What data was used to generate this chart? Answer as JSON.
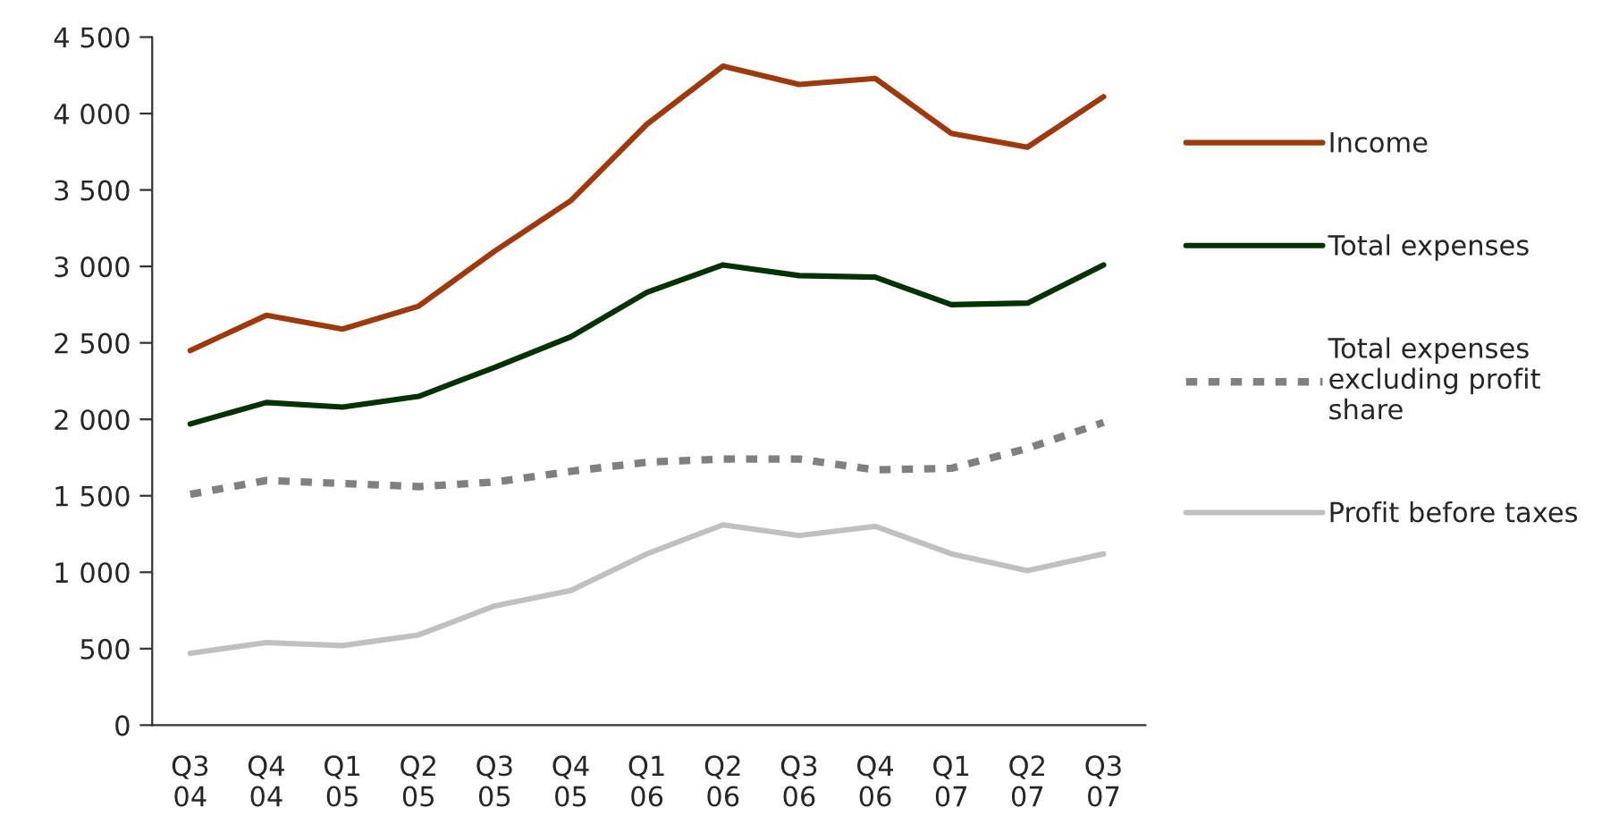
{
  "chart_data": {
    "type": "line",
    "categories": [
      "Q3\n04",
      "Q4\n04",
      "Q1\n05",
      "Q2\n05",
      "Q3\n05",
      "Q4\n05",
      "Q1\n06",
      "Q2\n06",
      "Q3\n06",
      "Q4\n06",
      "Q1\n07",
      "Q2\n07",
      "Q3\n07"
    ],
    "series": [
      {
        "name": "Income",
        "color": "#a0380a",
        "values": [
          2450,
          2680,
          2590,
          2740,
          3100,
          3430,
          3930,
          4310,
          4190,
          4230,
          3870,
          3780,
          4110
        ]
      },
      {
        "name": "Total expenses",
        "color": "#003300",
        "values": [
          1970,
          2110,
          2080,
          2150,
          2340,
          2540,
          2830,
          3010,
          2940,
          2930,
          2750,
          2760,
          3010
        ]
      },
      {
        "name": "Total expenses excluding profit share",
        "color": "#808080",
        "line_style": "dashed",
        "values": [
          1510,
          1600,
          1580,
          1560,
          1590,
          1660,
          1720,
          1740,
          1740,
          1670,
          1680,
          1810,
          1980
        ]
      },
      {
        "name": "Profit before taxes",
        "color": "#c0c0c0",
        "values": [
          470,
          540,
          520,
          590,
          780,
          880,
          1120,
          1310,
          1240,
          1300,
          1120,
          1010,
          1120
        ]
      }
    ],
    "ylim": [
      0,
      4500
    ],
    "yticks": [
      {
        "value": 0,
        "label": "0"
      },
      {
        "value": 500,
        "label": "500"
      },
      {
        "value": 1000,
        "label": "1 000"
      },
      {
        "value": 1500,
        "label": "1 500"
      },
      {
        "value": 2000,
        "label": "2 000"
      },
      {
        "value": 2500,
        "label": "2 500"
      },
      {
        "value": 3000,
        "label": "3 000"
      },
      {
        "value": 3500,
        "label": "3 500"
      },
      {
        "value": 4000,
        "label": "4 000"
      },
      {
        "value": 4500,
        "label": "4 500"
      }
    ],
    "grid": false,
    "legend": "right",
    "marker": "none"
  }
}
